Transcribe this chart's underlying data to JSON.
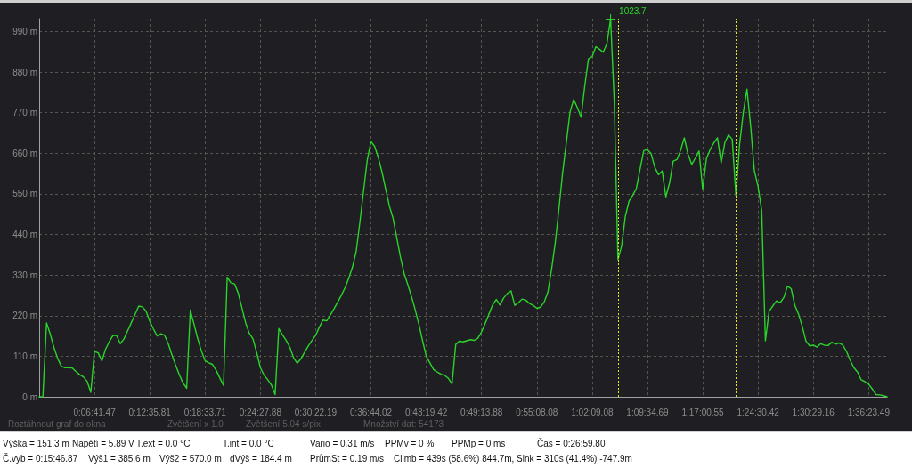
{
  "chart_data": {
    "type": "line",
    "color": "#2ad42a",
    "marker": "none",
    "line_style": "solid",
    "grid": true,
    "categories": [
      null,
      null,
      null,
      null,
      null,
      null,
      null,
      null,
      null,
      null,
      null,
      null,
      null,
      null,
      null,
      "0:06:41.47",
      null,
      null,
      null,
      null,
      null,
      null,
      null,
      null,
      null,
      null,
      null,
      null,
      null,
      null,
      "0:12:35.81",
      null,
      null,
      null,
      null,
      null,
      null,
      null,
      null,
      null,
      null,
      null,
      null,
      null,
      null,
      "0:18:33.71",
      null,
      null,
      null,
      null,
      null,
      null,
      null,
      null,
      null,
      null,
      null,
      null,
      null,
      null,
      "0:24:27.88",
      null,
      null,
      null,
      null,
      null,
      null,
      null,
      null,
      null,
      null,
      null,
      null,
      null,
      null,
      "0:30:22.19",
      null,
      null,
      null,
      null,
      null,
      null,
      null,
      null,
      null,
      null,
      null,
      null,
      null,
      null,
      "0:36:44.02",
      null,
      null,
      null,
      null,
      null,
      null,
      null,
      null,
      null,
      null,
      null,
      null,
      null,
      null,
      "0:43:19.42",
      null,
      null,
      null,
      null,
      null,
      null,
      null,
      null,
      null,
      null,
      null,
      null,
      null,
      null,
      "0:49:13.88",
      null,
      null,
      null,
      null,
      null,
      null,
      null,
      null,
      null,
      null,
      null,
      null,
      null,
      null,
      "0:55:08.08",
      null,
      null,
      null,
      null,
      null,
      null,
      null,
      null,
      null,
      null,
      null,
      null,
      null,
      null,
      "1:02:09.08",
      null,
      null,
      null,
      null,
      null,
      null,
      null,
      null,
      null,
      null,
      null,
      null,
      null,
      null,
      "1:09:34.69",
      null,
      null,
      null,
      null,
      null,
      null,
      null,
      null,
      null,
      null,
      null,
      null,
      null,
      null,
      "1:17:00.55",
      null,
      null,
      null,
      null,
      null,
      null,
      null,
      null,
      null,
      null,
      null,
      null,
      null,
      null,
      "1:24:30.42",
      null,
      null,
      null,
      null,
      null,
      null,
      null,
      null,
      null,
      null,
      null,
      null,
      null,
      null,
      "1:30:29.16",
      null,
      null,
      null,
      null,
      null,
      null,
      null,
      null,
      null,
      null,
      null,
      null,
      null,
      null,
      "1:36:23.49",
      null,
      null,
      null,
      null,
      null
    ],
    "values": [
      0,
      0,
      200,
      170,
      134,
      104,
      83,
      79,
      79,
      78,
      68,
      60,
      54,
      42,
      12,
      123,
      119,
      97,
      129,
      149,
      166,
      166,
      144,
      157,
      179,
      201,
      223,
      246,
      244,
      232,
      205,
      184,
      165,
      171,
      167,
      144,
      114,
      86,
      60,
      38,
      23,
      235,
      197,
      158,
      124,
      98,
      92,
      88,
      72,
      51,
      31,
      324,
      309,
      306,
      281,
      241,
      201,
      172,
      157,
      120,
      79,
      59,
      46,
      32,
      6,
      185,
      168,
      153,
      134,
      106,
      91,
      103,
      121,
      138,
      153,
      167,
      189,
      208,
      206,
      222,
      239,
      257,
      276,
      296,
      322,
      352,
      395,
      474,
      559,
      642,
      692,
      679,
      648,
      609,
      563,
      517,
      484,
      431,
      379,
      334,
      304,
      272,
      236,
      197,
      152,
      110,
      92,
      74,
      67,
      61,
      58,
      50,
      35,
      142,
      151,
      149,
      152,
      155,
      153,
      159,
      176,
      199,
      224,
      249,
      264,
      249,
      268,
      280,
      287,
      248,
      255,
      265,
      262,
      253,
      248,
      240,
      243,
      257,
      284,
      346,
      418,
      510,
      608,
      689,
      772,
      806,
      784,
      758,
      843,
      916,
      922,
      949,
      942,
      934,
      957,
      1023.7,
      801,
      372,
      409,
      489,
      530,
      546,
      565,
      617,
      667,
      670,
      659,
      622,
      602,
      612,
      542,
      580,
      639,
      643,
      668,
      702,
      658,
      630,
      647,
      666,
      562,
      646,
      670,
      688,
      702,
      634,
      689,
      710,
      698,
      546,
      684,
      770,
      834,
      734,
      613,
      571,
      505,
      152,
      232,
      246,
      260,
      255,
      269,
      300,
      293,
      248,
      224,
      191,
      151,
      138,
      140,
      135,
      144,
      140,
      139,
      148,
      143,
      146,
      140,
      123,
      99,
      79,
      67,
      46,
      41,
      34,
      21,
      6,
      5,
      3,
      0
    ],
    "ylim": [
      0,
      1025
    ],
    "yticks": [
      {
        "value": 0,
        "label": "0 m"
      },
      {
        "value": 110,
        "label": "110 m"
      },
      {
        "value": 220,
        "label": "220 m"
      },
      {
        "value": 330,
        "label": "330 m"
      },
      {
        "value": 440,
        "label": "440 m"
      },
      {
        "value": 550,
        "label": "550 m"
      },
      {
        "value": 660,
        "label": "660 m"
      },
      {
        "value": 770,
        "label": "770 m"
      },
      {
        "value": 880,
        "label": "880 m"
      },
      {
        "value": 990,
        "label": "990 m"
      }
    ],
    "annotations": [
      "1023.7",
      "Roztáhnout graf do okna",
      "Zvětšení x 1.0",
      "Zvětšení 5.04 s/pix",
      "Množství dat: 54173",
      "Výška = 151.3 m",
      "Napětí = 5.89 V",
      "T.ext = 0.0 °C",
      "T.int = 0.0 °C",
      "Vario = 0.31 m/s",
      "PPMv = 0 %",
      "PPMp = 0 ms",
      "Čas = 0:26:59.80",
      "Č.vyb = 0:15:46.87",
      "Výš1 = 385.6 m",
      "Výš2 = 570.0 m",
      "dVýš = 184.4 m",
      "PrůmSt = 0.19 m/s",
      "Climb = 439s (58.6%) 844.7m, Sink = 310s (41.4%) -747.9m"
    ]
  }
}
